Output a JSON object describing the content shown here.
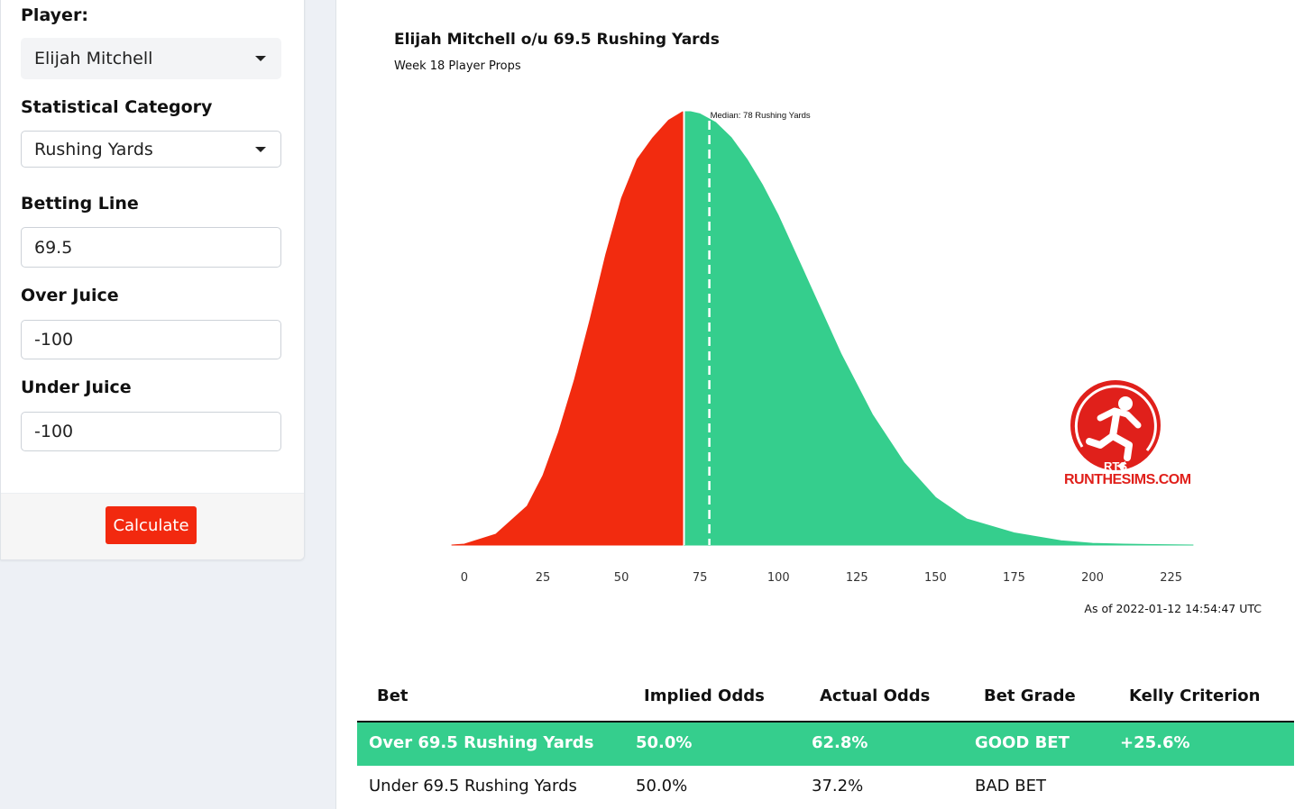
{
  "form": {
    "player_label": "Player:",
    "player_value": "Elijah Mitchell",
    "category_label": "Statistical Category",
    "category_value": "Rushing Yards",
    "line_label": "Betting Line",
    "line_value": "69.5",
    "over_label": "Over Juice",
    "over_value": "-100",
    "under_label": "Under Juice",
    "under_value": "-100",
    "calculate_label": "Calculate"
  },
  "chart": {
    "title": "Elijah Mitchell o/u 69.5 Rushing Yards",
    "subtitle": "Week 18 Player Props",
    "as_of": "As of 2022-01-12 14:54:47 UTC"
  },
  "logo": {
    "mark": "RTS",
    "text": "RUNTHESIMS.COM"
  },
  "chart_data": {
    "type": "area",
    "title": "Elijah Mitchell o/u 69.5 Rushing Yards",
    "subtitle": "Week 18 Player Props",
    "xlabel": "",
    "ylabel": "",
    "x_ticks": [
      0,
      25,
      50,
      75,
      100,
      125,
      150,
      175,
      200,
      225
    ],
    "xlim": [
      -4,
      232
    ],
    "split_line": 69.5,
    "median": 78,
    "median_label": "Median: 78 Rushing Yards",
    "series": [
      {
        "color": "#f22b0f",
        "x": [
          -4,
          0,
          10,
          20,
          25,
          30,
          35,
          40,
          45,
          50,
          55,
          60,
          65,
          69.5
        ],
        "y": [
          0,
          0.002,
          0.025,
          0.09,
          0.16,
          0.26,
          0.38,
          0.52,
          0.67,
          0.8,
          0.89,
          0.94,
          0.98,
          1.0
        ]
      },
      {
        "color": "#35ce8d",
        "x": [
          70,
          72,
          75,
          80,
          85,
          90,
          95,
          100,
          105,
          110,
          115,
          120,
          125,
          130,
          140,
          150,
          160,
          175,
          190,
          200,
          210,
          220,
          232
        ],
        "y": [
          1.0,
          1.0,
          0.995,
          0.975,
          0.94,
          0.89,
          0.83,
          0.76,
          0.68,
          0.6,
          0.52,
          0.44,
          0.37,
          0.3,
          0.19,
          0.11,
          0.06,
          0.028,
          0.01,
          0.004,
          0.002,
          0.001,
          0
        ]
      }
    ],
    "grid": false,
    "legend": "none"
  },
  "table": {
    "headers": [
      "Bet",
      "Implied Odds",
      "Actual Odds",
      "Bet Grade",
      "Kelly Criterion"
    ],
    "rows": [
      [
        "Over 69.5 Rushing Yards",
        "50.0%",
        "62.8%",
        "GOOD BET",
        "+25.6%"
      ],
      [
        "Under 69.5 Rushing Yards",
        "50.0%",
        "37.2%",
        "BAD BET",
        ""
      ]
    ]
  }
}
